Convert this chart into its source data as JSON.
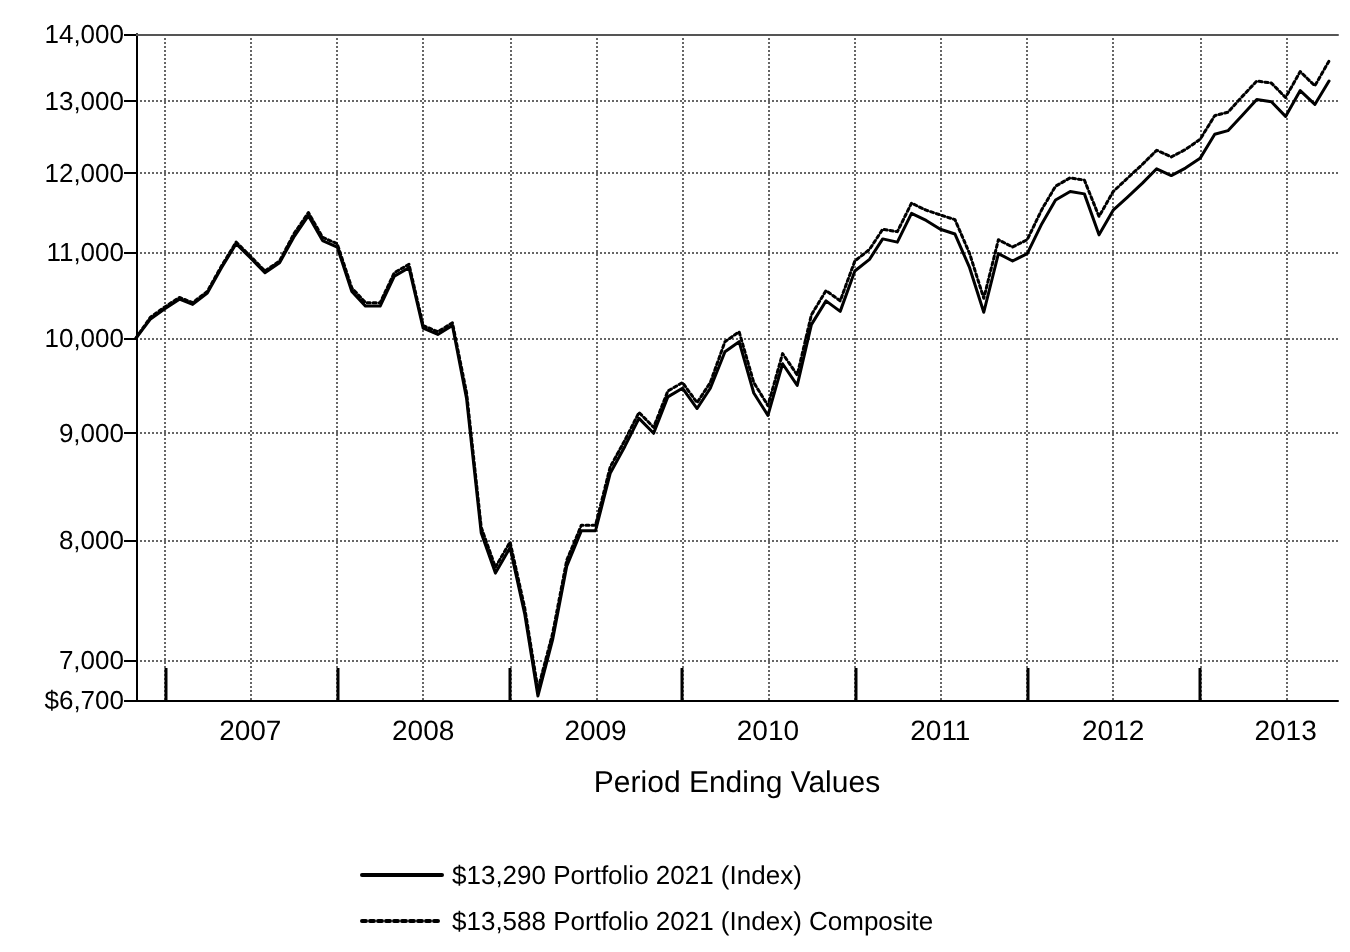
{
  "chart_data": {
    "type": "line",
    "xlabel": "Period Ending Values",
    "x": [
      "2006-11",
      "2006-12",
      "2007-01",
      "2007-02",
      "2007-03",
      "2007-04",
      "2007-05",
      "2007-06",
      "2007-07",
      "2007-08",
      "2007-09",
      "2007-10",
      "2007-11",
      "2007-12",
      "2008-01",
      "2008-02",
      "2008-03",
      "2008-04",
      "2008-05",
      "2008-06",
      "2008-07",
      "2008-08",
      "2008-09",
      "2008-10",
      "2008-11",
      "2008-12",
      "2009-01",
      "2009-02",
      "2009-03",
      "2009-04",
      "2009-05",
      "2009-06",
      "2009-07",
      "2009-08",
      "2009-09",
      "2009-10",
      "2009-11",
      "2009-12",
      "2010-01",
      "2010-02",
      "2010-03",
      "2010-04",
      "2010-05",
      "2010-06",
      "2010-07",
      "2010-08",
      "2010-09",
      "2010-10",
      "2010-11",
      "2010-12",
      "2011-01",
      "2011-02",
      "2011-03",
      "2011-04",
      "2011-05",
      "2011-06",
      "2011-07",
      "2011-08",
      "2011-09",
      "2011-10",
      "2011-11",
      "2011-12",
      "2012-01",
      "2012-02",
      "2012-03",
      "2012-04",
      "2012-05",
      "2012-06",
      "2012-07",
      "2012-08",
      "2012-09",
      "2012-10",
      "2012-11",
      "2012-12",
      "2013-01",
      "2013-02",
      "2013-03",
      "2013-04",
      "2013-05",
      "2013-06",
      "2013-07",
      "2013-08",
      "2013-09",
      "2013-10"
    ],
    "series": [
      {
        "name": "$13,290 Portfolio 2021 (Index)",
        "color": "#000000",
        "line_style": "solid",
        "values": [
          10000,
          10210,
          10330,
          10440,
          10380,
          10510,
          10810,
          11100,
          10930,
          10750,
          10870,
          11180,
          11450,
          11140,
          11060,
          10530,
          10360,
          10360,
          10710,
          10810,
          10110,
          10040,
          10140,
          9350,
          8060,
          7710,
          7930,
          7370,
          6730,
          7160,
          7770,
          8080,
          8080,
          8610,
          8870,
          9150,
          9000,
          9370,
          9460,
          9250,
          9460,
          9850,
          9960,
          9410,
          9180,
          9720,
          9490,
          10150,
          10420,
          10300,
          10770,
          10910,
          11160,
          11120,
          11480,
          11390,
          11280,
          11220,
          10810,
          10290,
          10980,
          10890,
          10980,
          11350,
          11650,
          11760,
          11730,
          11210,
          11520,
          11690,
          11870,
          12060,
          11970,
          12070,
          12200,
          12530,
          12580,
          12800,
          13020,
          12990,
          12780,
          13150,
          12950,
          13290
        ]
      },
      {
        "name": "$13,588 Portfolio 2021 (Index) Composite",
        "color": "#000000",
        "line_style": "dotted",
        "values": [
          10000,
          10230,
          10350,
          10460,
          10400,
          10530,
          10830,
          11120,
          10950,
          10770,
          10890,
          11220,
          11490,
          11180,
          11100,
          10570,
          10400,
          10400,
          10750,
          10850,
          10140,
          10070,
          10170,
          9410,
          8110,
          7760,
          7980,
          7420,
          6780,
          7210,
          7820,
          8130,
          8130,
          8670,
          8930,
          9210,
          9060,
          9430,
          9520,
          9310,
          9520,
          9960,
          10070,
          9520,
          9280,
          9830,
          9600,
          10260,
          10540,
          10420,
          10890,
          11030,
          11280,
          11250,
          11610,
          11520,
          11460,
          11400,
          10980,
          10450,
          11150,
          11060,
          11150,
          11530,
          11830,
          11940,
          11910,
          11440,
          11760,
          11940,
          12120,
          12310,
          12220,
          12320,
          12460,
          12790,
          12840,
          13070,
          13290,
          13260,
          13050,
          13430,
          13220,
          13588
        ]
      }
    ],
    "log": "y",
    "xlim": [
      "2006-11",
      "2013-10-20"
    ],
    "xticks": [
      {
        "value": "2007-01",
        "label": null
      },
      {
        "value": "2007-07",
        "label": "2007"
      },
      {
        "value": "2008-01",
        "label": null
      },
      {
        "value": "2008-07",
        "label": "2008"
      },
      {
        "value": "2009-01",
        "label": null
      },
      {
        "value": "2009-07",
        "label": "2009"
      },
      {
        "value": "2010-01",
        "label": null
      },
      {
        "value": "2010-07",
        "label": "2010"
      },
      {
        "value": "2011-01",
        "label": null
      },
      {
        "value": "2011-07",
        "label": "2011"
      },
      {
        "value": "2012-01",
        "label": null
      },
      {
        "value": "2012-07",
        "label": "2012"
      },
      {
        "value": "2013-01",
        "label": null
      },
      {
        "value": "2013-07",
        "label": "2013"
      }
    ],
    "ylim": [
      6700,
      14000
    ],
    "yticks": [
      {
        "value": 6700,
        "label": "$6,700"
      },
      {
        "value": 7000,
        "label": "7,000"
      },
      {
        "value": 8000,
        "label": "8,000"
      },
      {
        "value": 9000,
        "label": "9,000"
      },
      {
        "value": 10000,
        "label": "10,000"
      },
      {
        "value": 11000,
        "label": "11,000"
      },
      {
        "value": 12000,
        "label": "12,000"
      },
      {
        "value": 13000,
        "label": "13,000"
      },
      {
        "value": 14000,
        "label": "14,000"
      }
    ],
    "grid": true,
    "legend": "bottom",
    "marker": "none"
  }
}
